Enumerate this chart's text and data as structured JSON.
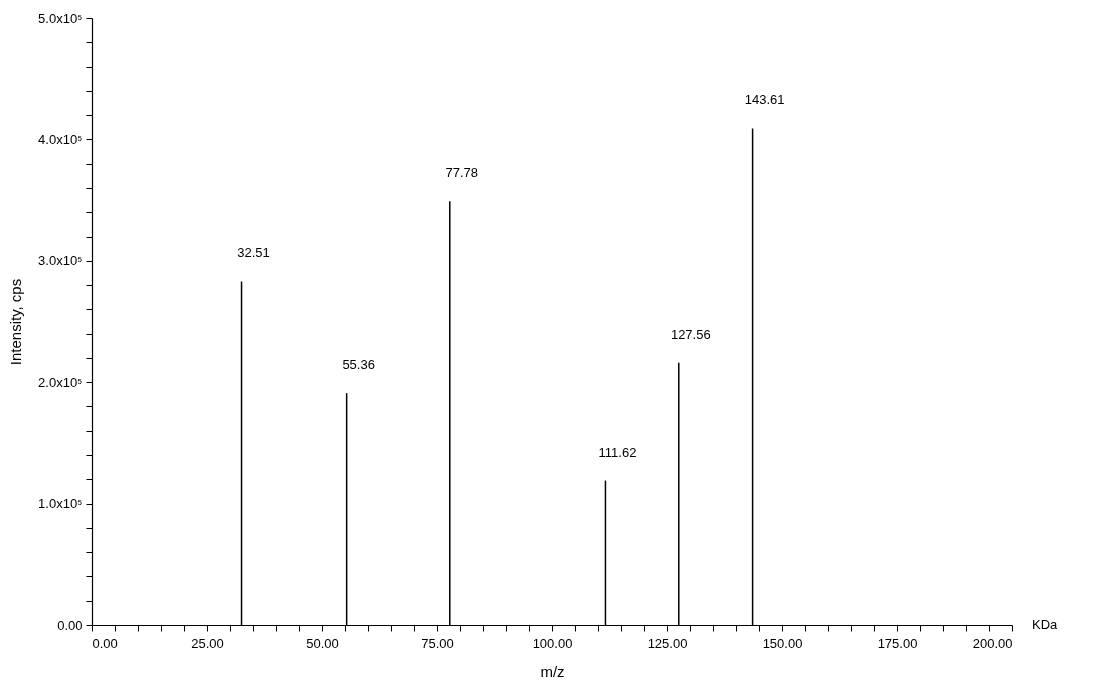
{
  "chart_data": {
    "type": "bar",
    "xlabel": "m/z",
    "ylabel": "Intensity, cps",
    "x": [
      32.51,
      55.36,
      77.78,
      111.62,
      127.56,
      143.61
    ],
    "values": [
      283000,
      191000,
      349000,
      119000,
      216000,
      409000
    ],
    "color": "#000000",
    "xlim": [
      0,
      200
    ],
    "xticks": [
      {
        "value": 0,
        "label": "0.00"
      },
      {
        "value": 5,
        "label": null
      },
      {
        "value": 10,
        "label": null
      },
      {
        "value": 15,
        "label": null
      },
      {
        "value": 20,
        "label": null
      },
      {
        "value": 25,
        "label": "25.00"
      },
      {
        "value": 30,
        "label": null
      },
      {
        "value": 35,
        "label": null
      },
      {
        "value": 40,
        "label": null
      },
      {
        "value": 45,
        "label": null
      },
      {
        "value": 50,
        "label": "50.00"
      },
      {
        "value": 55,
        "label": null
      },
      {
        "value": 60,
        "label": null
      },
      {
        "value": 65,
        "label": null
      },
      {
        "value": 70,
        "label": null
      },
      {
        "value": 75,
        "label": "75.00"
      },
      {
        "value": 80,
        "label": null
      },
      {
        "value": 85,
        "label": null
      },
      {
        "value": 90,
        "label": null
      },
      {
        "value": 95,
        "label": null
      },
      {
        "value": 100,
        "label": "100.00"
      },
      {
        "value": 105,
        "label": null
      },
      {
        "value": 110,
        "label": null
      },
      {
        "value": 115,
        "label": null
      },
      {
        "value": 120,
        "label": null
      },
      {
        "value": 125,
        "label": "125.00"
      },
      {
        "value": 130,
        "label": null
      },
      {
        "value": 135,
        "label": null
      },
      {
        "value": 140,
        "label": null
      },
      {
        "value": 145,
        "label": null
      },
      {
        "value": 150,
        "label": "150.00"
      },
      {
        "value": 155,
        "label": null
      },
      {
        "value": 160,
        "label": null
      },
      {
        "value": 165,
        "label": null
      },
      {
        "value": 170,
        "label": null
      },
      {
        "value": 175,
        "label": "175.00"
      },
      {
        "value": 180,
        "label": null
      },
      {
        "value": 185,
        "label": null
      },
      {
        "value": 190,
        "label": null
      },
      {
        "value": 195,
        "label": null
      },
      {
        "value": 200,
        "label": "200.00"
      }
    ],
    "ylim": [
      0,
      500000
    ],
    "yticks": [
      {
        "value": 0,
        "label": "0.00"
      },
      {
        "value": 20000,
        "label": null
      },
      {
        "value": 40000,
        "label": null
      },
      {
        "value": 60000,
        "label": null
      },
      {
        "value": 80000,
        "label": null
      },
      {
        "value": 100000,
        "label": "1.0x10⁵"
      },
      {
        "value": 120000,
        "label": null
      },
      {
        "value": 140000,
        "label": null
      },
      {
        "value": 160000,
        "label": null
      },
      {
        "value": 180000,
        "label": null
      },
      {
        "value": 200000,
        "label": "2.0x10⁵"
      },
      {
        "value": 220000,
        "label": null
      },
      {
        "value": 240000,
        "label": null
      },
      {
        "value": 260000,
        "label": null
      },
      {
        "value": 280000,
        "label": null
      },
      {
        "value": 300000,
        "label": "3.0x10⁵"
      },
      {
        "value": 320000,
        "label": null
      },
      {
        "value": 340000,
        "label": null
      },
      {
        "value": 360000,
        "label": null
      },
      {
        "value": 380000,
        "label": null
      },
      {
        "value": 400000,
        "label": "4.0x10⁵"
      },
      {
        "value": 420000,
        "label": null
      },
      {
        "value": 440000,
        "label": null
      },
      {
        "value": 460000,
        "label": null
      },
      {
        "value": 480000,
        "label": null
      },
      {
        "value": 500000,
        "label": "5.0x10⁵"
      }
    ],
    "grid": false,
    "annotations": [
      {
        "text": "32.51",
        "x": 32.51,
        "y": 283000
      },
      {
        "text": "55.36",
        "x": 55.36,
        "y": 191000
      },
      {
        "text": "77.78",
        "x": 77.78,
        "y": 349000
      },
      {
        "text": "111.62",
        "x": 111.62,
        "y": 119000
      },
      {
        "text": "127.56",
        "x": 127.56,
        "y": 216000
      },
      {
        "text": "143.61",
        "x": 143.61,
        "y": 409000
      },
      "KDa"
    ]
  }
}
